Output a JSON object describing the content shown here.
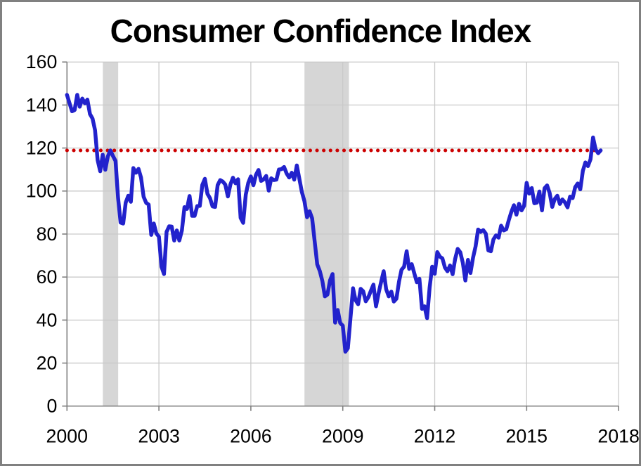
{
  "frame": {
    "background": "#FFFFFF",
    "border_color": "#808080"
  },
  "chart_data": {
    "type": "line",
    "title": "Consumer Confidence Index",
    "xlabel": "",
    "ylabel": "",
    "x_range": [
      2000,
      2018
    ],
    "y_range": [
      0,
      160
    ],
    "x_ticks": [
      2000,
      2003,
      2006,
      2009,
      2012,
      2015,
      2018
    ],
    "y_ticks": [
      0,
      20,
      40,
      60,
      80,
      100,
      120,
      140,
      160
    ],
    "grid": true,
    "legend_position": "none",
    "colors": {
      "line": "#2222CC",
      "reference": "#CC0000",
      "recession_band": "#D6D6D6",
      "grid": "#C9C9C9",
      "axis": "#7F7F7F",
      "text": "#000000"
    },
    "reference_line": {
      "value": 118.9,
      "x_start": 2000,
      "x_end": 2017.2,
      "style": "dotted"
    },
    "recession_bands": [
      {
        "x_start": 2001.17,
        "x_end": 2001.67
      },
      {
        "x_start": 2007.75,
        "x_end": 2009.2
      }
    ],
    "series": [
      {
        "name": "Consumer Confidence Index",
        "frequency": "monthly",
        "start_year": 2000,
        "start_month": 1,
        "values": [
          144.7,
          140.8,
          137.1,
          137.7,
          144.7,
          139.2,
          143.0,
          140.8,
          142.5,
          135.8,
          133.7,
          128.3,
          114.4,
          109.2,
          116.9,
          109.9,
          116.1,
          118.9,
          116.3,
          114.0,
          97.0,
          85.3,
          84.9,
          94.6,
          97.8,
          95.0,
          110.7,
          108.5,
          110.3,
          106.3,
          97.4,
          94.5,
          93.7,
          79.6,
          84.9,
          80.3,
          78.8,
          64.8,
          61.4,
          81.0,
          83.6,
          83.5,
          77.0,
          81.7,
          77.0,
          81.7,
          92.5,
          91.7,
          97.7,
          88.5,
          88.5,
          93.0,
          93.1,
          102.8,
          105.7,
          98.7,
          96.7,
          92.9,
          92.6,
          102.7,
          105.1,
          104.4,
          103.0,
          97.5,
          103.1,
          106.2,
          103.6,
          105.5,
          87.5,
          85.2,
          98.3,
          103.8,
          106.8,
          102.7,
          107.5,
          109.8,
          104.7,
          105.4,
          107.0,
          100.2,
          105.9,
          105.1,
          105.3,
          110.0,
          110.2,
          111.2,
          108.2,
          106.3,
          108.5,
          105.3,
          111.9,
          105.6,
          99.5,
          95.2,
          87.8,
          90.6,
          87.3,
          76.4,
          65.9,
          62.8,
          58.1,
          51.0,
          51.9,
          58.5,
          61.4,
          38.8,
          44.7,
          38.6,
          37.4,
          25.3,
          26.9,
          40.8,
          54.8,
          49.3,
          47.4,
          54.5,
          53.4,
          48.7,
          50.6,
          53.6,
          56.5,
          46.4,
          52.3,
          57.7,
          62.7,
          54.3,
          51.0,
          53.2,
          48.6,
          49.9,
          57.8,
          63.4,
          64.8,
          72.0,
          63.8,
          66.0,
          61.7,
          57.6,
          59.2,
          45.2,
          46.4,
          40.9,
          55.2,
          64.8,
          61.5,
          71.6,
          69.5,
          68.7,
          64.4,
          62.7,
          65.4,
          61.3,
          68.4,
          73.1,
          71.5,
          66.7,
          58.4,
          68.0,
          61.9,
          69.0,
          74.3,
          82.1,
          81.0,
          81.8,
          80.2,
          72.4,
          72.0,
          77.5,
          79.4,
          78.3,
          83.9,
          81.7,
          82.2,
          86.4,
          90.3,
          93.4,
          89.0,
          94.1,
          91.0,
          93.1,
          103.8,
          98.8,
          101.4,
          94.3,
          94.6,
          99.8,
          91.0,
          101.3,
          102.6,
          99.1,
          92.6,
          96.3,
          97.8,
          94.0,
          96.1,
          94.7,
          92.4,
          97.4,
          96.7,
          101.8,
          103.5,
          100.8,
          109.4,
          113.3,
          111.6,
          114.8,
          124.9,
          119.4,
          117.6,
          118.9
        ]
      }
    ]
  }
}
